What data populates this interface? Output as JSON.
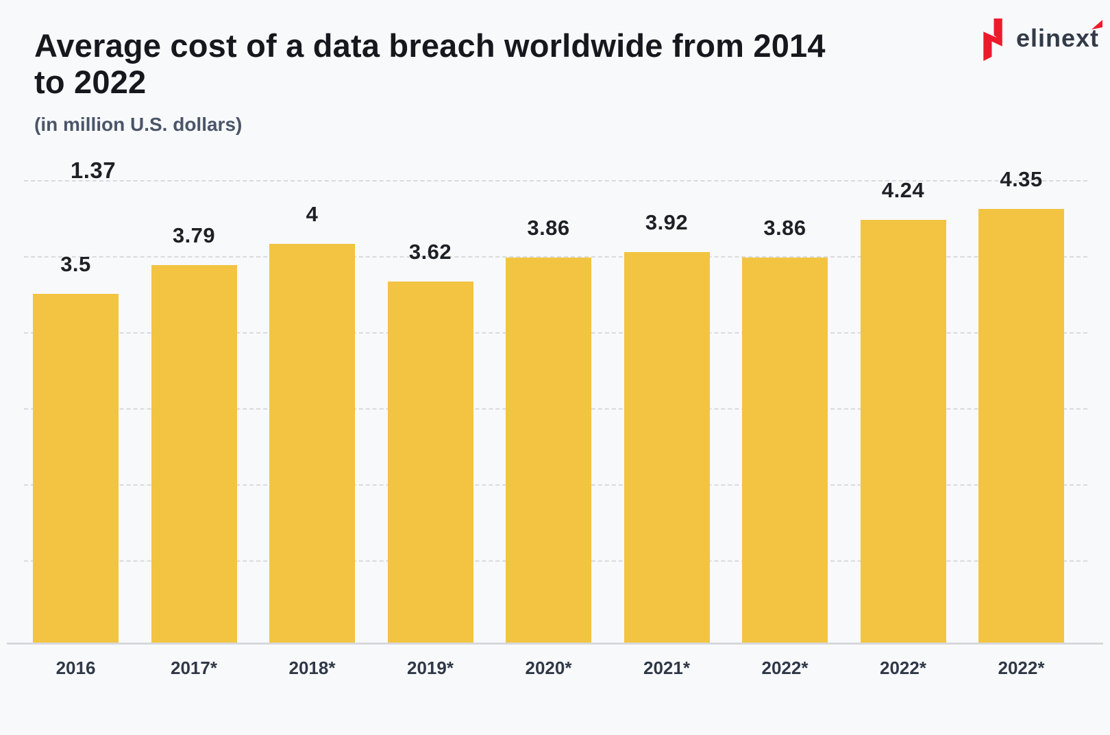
{
  "page": {
    "background": "#F8F9FB"
  },
  "header": {
    "title_line1": "Average cost of a data breach worldwide from 2014",
    "title_line2": "to 2022",
    "subtitle": "(in million U.S. dollars)"
  },
  "logo": {
    "text": "elinext",
    "brand_red": "#EC1B2C",
    "text_color": "#333B48"
  },
  "chart_data": {
    "type": "bar",
    "title": "Average cost of a data breach worldwide from 2014 to 2022",
    "subtitle": "(in million U.S. dollars)",
    "unit": "million U.S. dollars",
    "categories": [
      "2016",
      "2017*",
      "2018*",
      "2019*",
      "2020*",
      "2021*",
      "2022*",
      "2022*",
      "2022*"
    ],
    "values": [
      3.5,
      3.79,
      4,
      3.62,
      3.86,
      3.92,
      3.86,
      4.24,
      4.35
    ],
    "value_labels": [
      "3.5",
      "3.79",
      "4",
      "3.62",
      "3.86",
      "3.92",
      "3.86",
      "4.24",
      "4.35"
    ],
    "annotations": [
      {
        "text": "1.37",
        "position": "top-left, on first gridline above 2016 bar"
      }
    ],
    "xlabel": "",
    "ylabel": "",
    "ylim": [
      0,
      4.65
    ],
    "grid": "horizontal-dashed",
    "legend": "none",
    "bar_color": "#F2C442",
    "label_color": "#1D2025",
    "axis_label_color": "#2F3847",
    "grid_color": "#D8DADD",
    "title_color": "#16181D",
    "subtitle_color": "#4A5568",
    "background_color": "#F8F9FB"
  }
}
